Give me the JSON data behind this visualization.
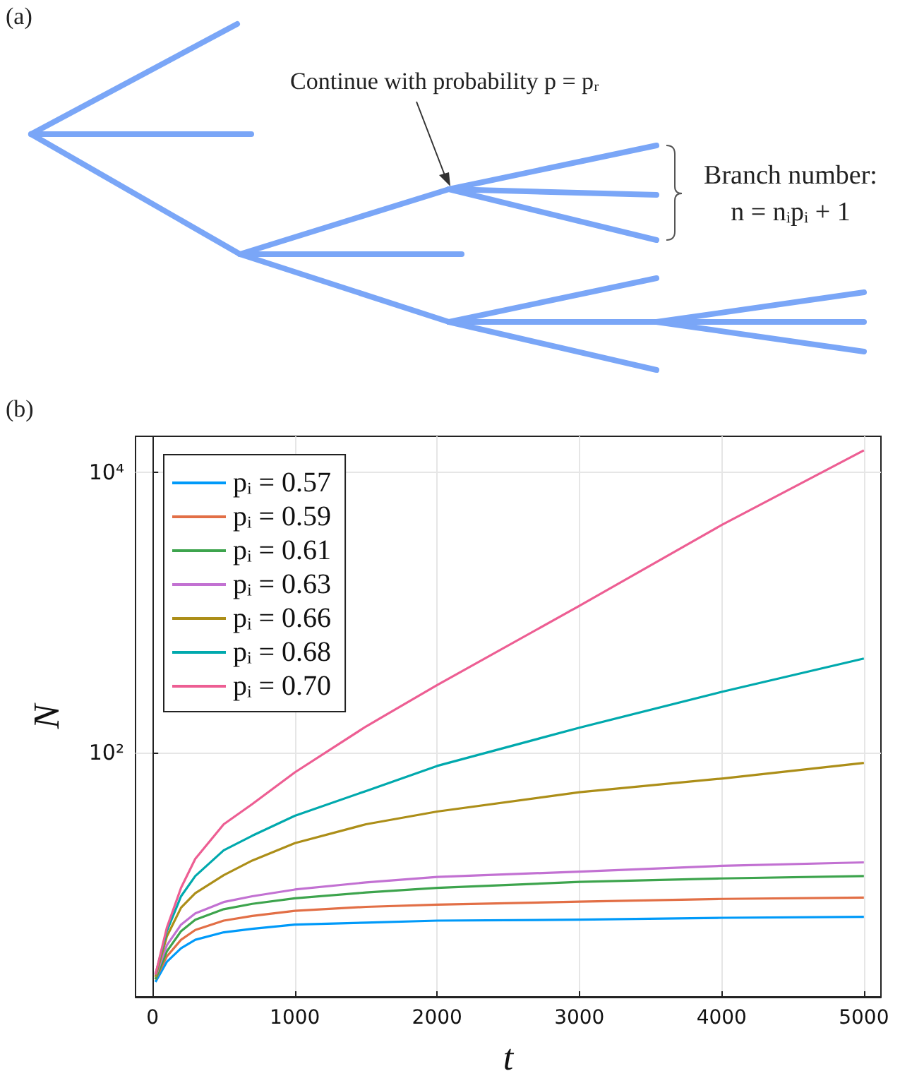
{
  "chart_data": {
    "type": "line",
    "xlabel": "t",
    "ylabel": "N",
    "x": [
      20,
      100,
      200,
      300,
      500,
      700,
      1000,
      1500,
      2000,
      3000,
      4000,
      5000
    ],
    "series": [
      {
        "name": "pᵢ = 0.57",
        "color": "#009af9",
        "values": [
          2.3,
          3.2,
          4.0,
          4.6,
          5.2,
          5.5,
          5.9,
          6.1,
          6.3,
          6.4,
          6.6,
          6.7
        ]
      },
      {
        "name": "pᵢ = 0.59",
        "color": "#e26f46",
        "values": [
          2.4,
          3.5,
          4.6,
          5.4,
          6.3,
          6.8,
          7.4,
          7.9,
          8.2,
          8.6,
          9.0,
          9.2
        ]
      },
      {
        "name": "pᵢ = 0.61",
        "color": "#3da44d",
        "values": [
          2.4,
          3.8,
          5.3,
          6.4,
          7.6,
          8.3,
          9.1,
          10.0,
          10.8,
          11.9,
          12.6,
          13.1
        ]
      },
      {
        "name": "pᵢ = 0.63",
        "color": "#c271d2",
        "values": [
          2.5,
          4.2,
          5.9,
          7.1,
          8.55,
          9.4,
          10.5,
          11.8,
          12.9,
          14.1,
          15.5,
          16.4
        ]
      },
      {
        "name": "pᵢ = 0.66",
        "color": "#ac8e18",
        "values": [
          2.5,
          4.85,
          7.8,
          9.9,
          13.3,
          16.9,
          22.5,
          30.7,
          37.8,
          52,
          65,
          84
        ]
      },
      {
        "name": "pᵢ = 0.68",
        "color": "#00a9ad",
        "values": [
          2.6,
          5.3,
          9.4,
          13.1,
          20,
          25.4,
          35.3,
          53,
          80,
          150,
          270,
          467
        ]
      },
      {
        "name": "pᵢ = 0.70",
        "color": "#ed5e93",
        "values": [
          2.6,
          5.6,
          10.8,
          17.4,
          30.7,
          42.7,
          72,
          153,
          302,
          1110,
          4190,
          14300
        ]
      }
    ],
    "xlim": [
      -120,
      5120
    ],
    "xticks": [
      0,
      1000,
      2000,
      3000,
      4000,
      5000
    ],
    "log": "y",
    "ylim": [
      1.8,
      18000
    ],
    "yticks": [
      {
        "value": 100,
        "label": "10²"
      },
      {
        "value": 10000,
        "label": "10⁴"
      }
    ],
    "grid": true,
    "legend": "top left",
    "annotations": [
      "(a)",
      "Continue with probability p = pᵣ",
      "Branch number:",
      "n = nᵢpᵢ + 1",
      "(b)"
    ]
  }
}
